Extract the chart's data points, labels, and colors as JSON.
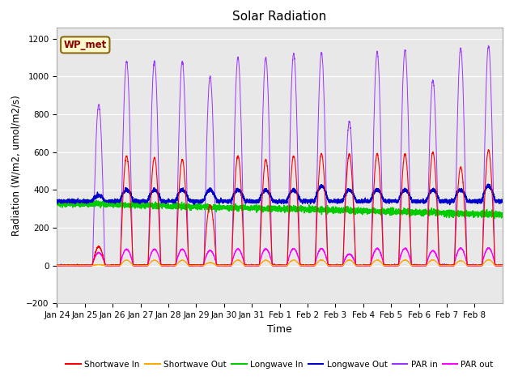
{
  "title": "Solar Radiation",
  "xlabel": "Time",
  "ylabel": "Radiation (W/m2, umol/m2/s)",
  "ylim": [
    -200,
    1260
  ],
  "yticks": [
    -200,
    0,
    200,
    400,
    600,
    800,
    1000,
    1200
  ],
  "fig_bg_color": "#ffffff",
  "plot_bg_color": "#e8e8e8",
  "site_label": "WP_met",
  "legend_entries": [
    "Shortwave In",
    "Shortwave Out",
    "Longwave In",
    "Longwave Out",
    "PAR in",
    "PAR out"
  ],
  "line_colors": [
    "#ff0000",
    "#ffaa00",
    "#00cc00",
    "#0000cc",
    "#9933ff",
    "#ff00ff"
  ],
  "n_days": 16,
  "xtick_labels": [
    "Jan 24",
    "Jan 25",
    "Jan 26",
    "Jan 27",
    "Jan 28",
    "Jan 29",
    "Jan 30",
    "Jan 31",
    "Feb 1",
    "Feb 2",
    "Feb 3",
    "Feb 4",
    "Feb 5",
    "Feb 6",
    "Feb 7",
    "Feb 8"
  ],
  "sw_in_peaks": [
    0,
    100,
    580,
    570,
    560,
    320,
    580,
    560,
    580,
    590,
    590,
    590,
    590,
    600,
    520,
    610
  ],
  "par_in_peaks": [
    0,
    850,
    1080,
    1080,
    1080,
    1000,
    1100,
    1100,
    1120,
    1125,
    760,
    1130,
    1140,
    980,
    1150,
    1160
  ],
  "lw_out_base": 340,
  "lw_in_base": 290
}
